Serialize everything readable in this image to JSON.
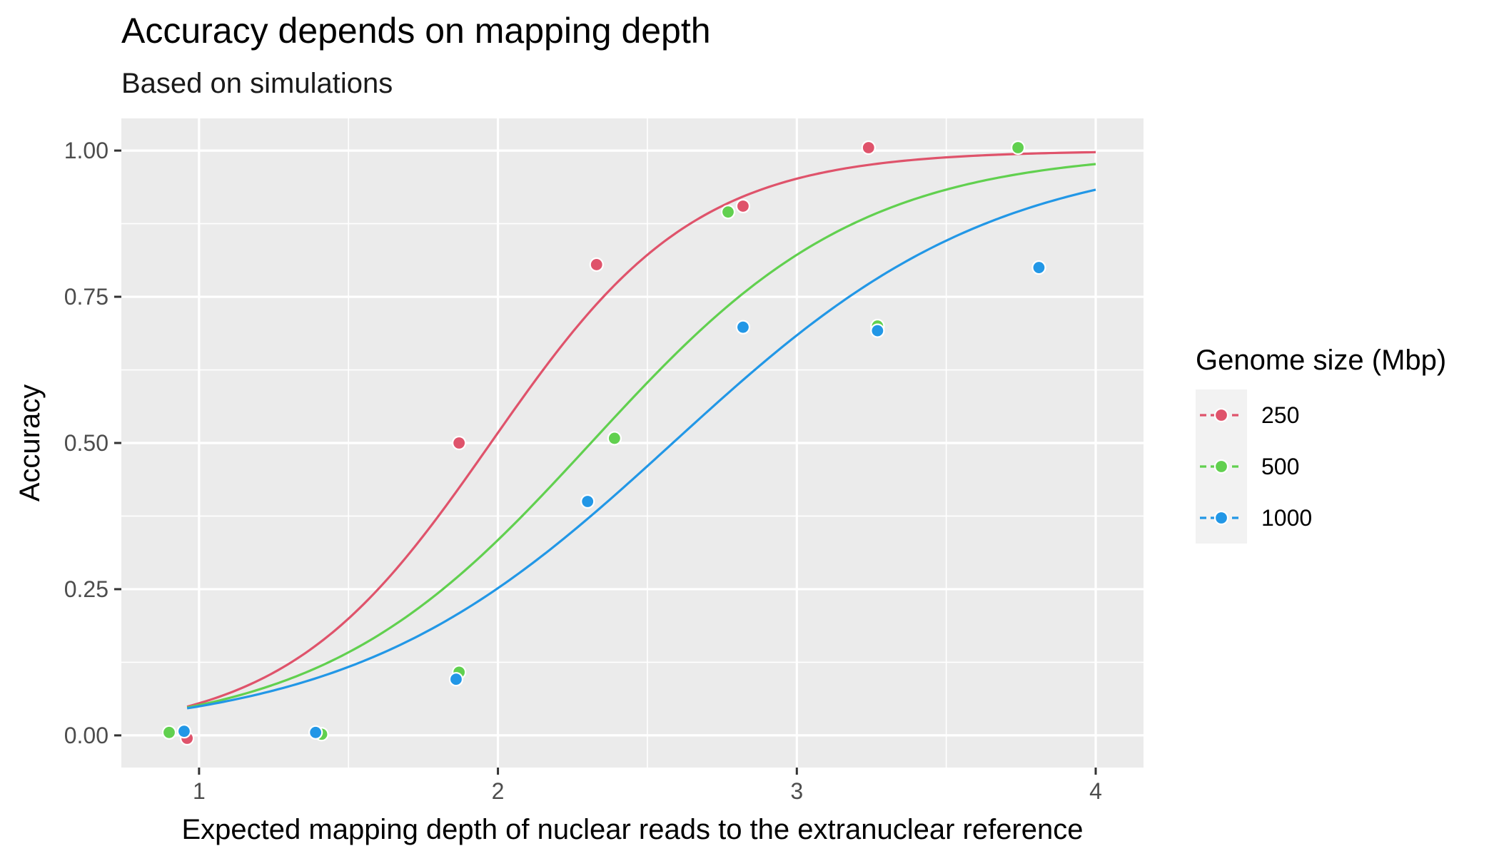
{
  "chart_data": {
    "type": "scatter",
    "title": "Accuracy depends on mapping depth",
    "subtitle": "Based on simulations",
    "xlabel": "Expected mapping depth of nuclear reads to the extranuclear reference",
    "ylabel": "Accuracy",
    "xlim": [
      0.74,
      4.16
    ],
    "ylim": [
      -0.055,
      1.055
    ],
    "x_ticks": [
      1,
      2,
      3,
      4
    ],
    "x_tick_labels": [
      "1",
      "2",
      "3",
      "4"
    ],
    "y_ticks": [
      0,
      0.25,
      0.5,
      0.75,
      1
    ],
    "y_tick_labels": [
      "0.00",
      "0.25",
      "0.50",
      "0.75",
      "1.00"
    ],
    "grid": true,
    "legend": {
      "title": "Genome size (Mbp)",
      "position": "right"
    },
    "series": [
      {
        "name": "250",
        "color": "#DF536B",
        "points": [
          {
            "x": 0.96,
            "y": -0.005
          },
          {
            "x": 1.87,
            "y": 0.5
          },
          {
            "x": 2.33,
            "y": 0.805
          },
          {
            "x": 2.82,
            "y": 0.905
          },
          {
            "x": 3.24,
            "y": 1.005
          }
        ],
        "curve": {
          "type": "logistic",
          "midpoint": 1.976,
          "slope": 2.916
        }
      },
      {
        "name": "500",
        "color": "#61D04F",
        "points": [
          {
            "x": 0.9,
            "y": 0.005
          },
          {
            "x": 1.41,
            "y": 0.002
          },
          {
            "x": 1.87,
            "y": 0.108
          },
          {
            "x": 2.39,
            "y": 0.508
          },
          {
            "x": 2.77,
            "y": 0.895
          },
          {
            "x": 3.27,
            "y": 0.7
          },
          {
            "x": 3.74,
            "y": 1.005
          }
        ],
        "curve": {
          "type": "logistic",
          "midpoint": 2.311,
          "slope": 2.218
        }
      },
      {
        "name": "1000",
        "color": "#2297E6",
        "points": [
          {
            "x": 0.95,
            "y": 0.007
          },
          {
            "x": 1.39,
            "y": 0.005
          },
          {
            "x": 1.86,
            "y": 0.096
          },
          {
            "x": 2.3,
            "y": 0.4
          },
          {
            "x": 2.82,
            "y": 0.698
          },
          {
            "x": 3.27,
            "y": 0.692
          },
          {
            "x": 3.81,
            "y": 0.8
          }
        ],
        "curve": {
          "type": "logistic",
          "midpoint": 2.585,
          "slope": 1.862
        }
      }
    ]
  }
}
